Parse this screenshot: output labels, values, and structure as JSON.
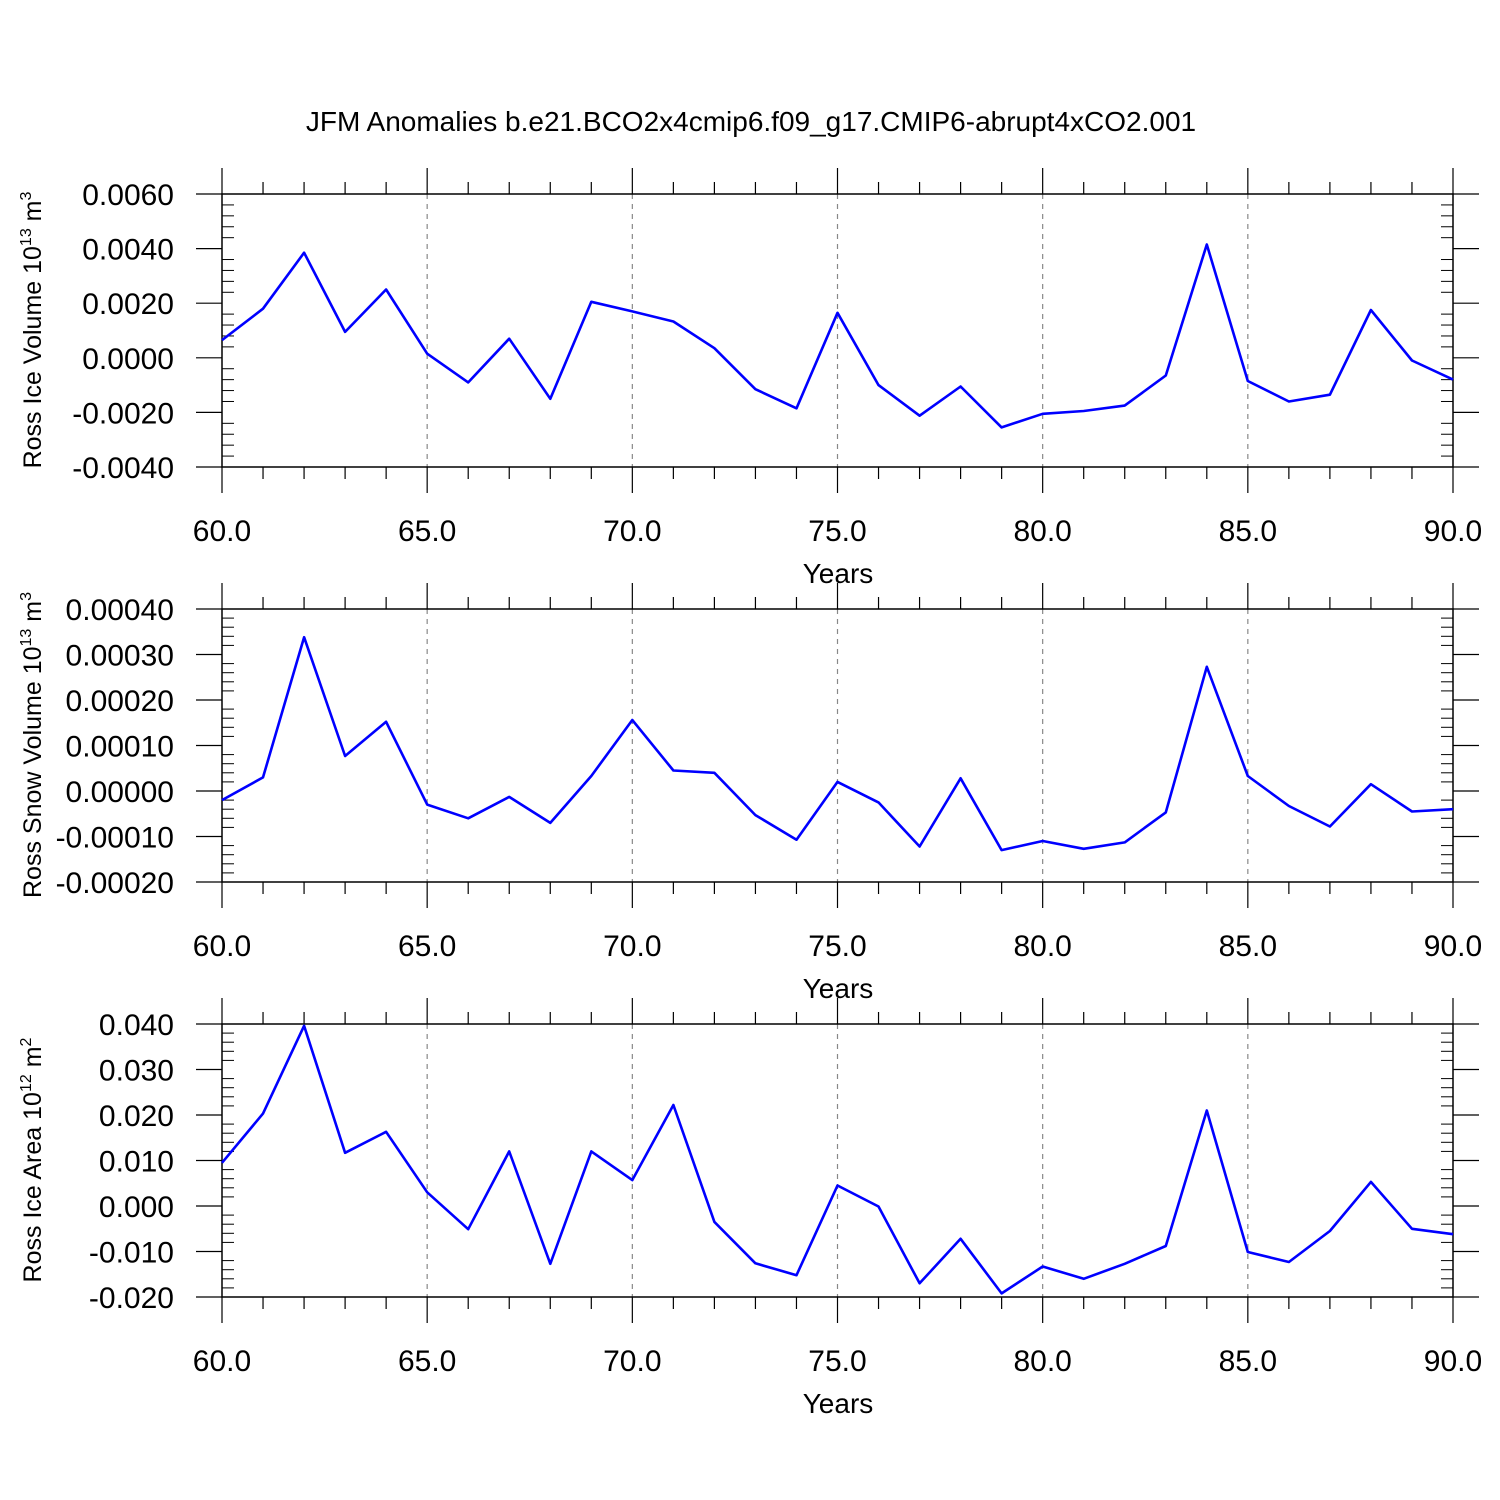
{
  "title": "JFM Anomalies b.e21.BCO2x4cmip6.f09_g17.CMIP6-abrupt4xCO2.001",
  "line_color": "#0000ff",
  "chart_data": [
    {
      "type": "line",
      "title": "JFM Anomalies b.e21.BCO2x4cmip6.f09_g17.CMIP6-abrupt4xCO2.001",
      "xlabel": "Years",
      "ylabel_main": "Ross Ice Volume 10",
      "ylabel_sup": "13",
      "ylabel_unit": "m",
      "ylabel_unit_sup": "3",
      "xlim": [
        60,
        90
      ],
      "ylim": [
        -0.004,
        0.006
      ],
      "xticks": [
        "60.0",
        "65.0",
        "70.0",
        "75.0",
        "80.0",
        "85.0",
        "90.0"
      ],
      "yticks": [
        "0.0060",
        "0.0040",
        "0.0020",
        "0.0000",
        "-0.0020",
        "-0.0040"
      ],
      "x": [
        60,
        61,
        62,
        63,
        64,
        65,
        66,
        67,
        68,
        69,
        70,
        71,
        72,
        73,
        74,
        75,
        76,
        77,
        78,
        79,
        80,
        81,
        82,
        83,
        84,
        85,
        86,
        87,
        88,
        89,
        90
      ],
      "values": [
        0.00065,
        0.0018,
        0.00385,
        0.00095,
        0.0025,
        0.00015,
        -0.0009,
        0.0007,
        -0.0015,
        0.00205,
        0.0017,
        0.00133,
        0.00035,
        -0.00115,
        -0.00185,
        0.00165,
        -0.001,
        -0.00212,
        -0.00105,
        -0.00255,
        -0.00205,
        -0.00195,
        -0.00175,
        -0.00065,
        0.00415,
        -0.00085,
        -0.0016,
        -0.00135,
        0.00175,
        -0.0001,
        -0.0008
      ]
    },
    {
      "type": "line",
      "xlabel": "Years",
      "ylabel_main": "Ross Snow Volume 10",
      "ylabel_sup": "13",
      "ylabel_unit": "m",
      "ylabel_unit_sup": "3",
      "xlim": [
        60,
        90
      ],
      "ylim": [
        -0.0002,
        0.0004
      ],
      "xticks": [
        "60.0",
        "65.0",
        "70.0",
        "75.0",
        "80.0",
        "85.0",
        "90.0"
      ],
      "yticks": [
        "0.00040",
        "0.00030",
        "0.00020",
        "0.00010",
        "0.00000",
        "-0.00010",
        "-0.00020"
      ],
      "x": [
        60,
        61,
        62,
        63,
        64,
        65,
        66,
        67,
        68,
        69,
        70,
        71,
        72,
        73,
        74,
        75,
        76,
        77,
        78,
        79,
        80,
        81,
        82,
        83,
        84,
        85,
        86,
        87,
        88,
        89,
        90
      ],
      "values": [
        -2e-05,
        3e-05,
        0.000338,
        7.7e-05,
        0.000152,
        -3e-05,
        -6e-05,
        -1.3e-05,
        -7e-05,
        3.3e-05,
        0.000156,
        4.5e-05,
        4e-05,
        -5.3e-05,
        -0.000107,
        2e-05,
        -2.5e-05,
        -0.000122,
        2.8e-05,
        -0.00013,
        -0.00011,
        -0.000127,
        -0.000113,
        -4.7e-05,
        0.000273,
        3.3e-05,
        -3.3e-05,
        -7.8e-05,
        1.5e-05,
        -4.5e-05,
        -4e-05
      ]
    },
    {
      "type": "line",
      "xlabel": "Years",
      "ylabel_main": "Ross Ice Area 10",
      "ylabel_sup": "12",
      "ylabel_unit": "m",
      "ylabel_unit_sup": "2",
      "xlim": [
        60,
        90
      ],
      "ylim": [
        -0.02,
        0.04
      ],
      "xticks": [
        "60.0",
        "65.0",
        "70.0",
        "75.0",
        "80.0",
        "85.0",
        "90.0"
      ],
      "yticks": [
        "0.040",
        "0.030",
        "0.020",
        "0.010",
        "0.000",
        "-0.010",
        "-0.020"
      ],
      "x": [
        60,
        61,
        62,
        63,
        64,
        65,
        66,
        67,
        68,
        69,
        70,
        71,
        72,
        73,
        74,
        75,
        76,
        77,
        78,
        79,
        80,
        81,
        82,
        83,
        84,
        85,
        86,
        87,
        88,
        89,
        90
      ],
      "values": [
        0.0095,
        0.0203,
        0.0396,
        0.0117,
        0.0163,
        0.003,
        -0.0051,
        0.012,
        -0.0127,
        0.012,
        0.0057,
        0.0222,
        -0.0035,
        -0.0126,
        -0.0152,
        0.0045,
        -0.0001,
        -0.017,
        -0.0072,
        -0.0192,
        -0.0133,
        -0.016,
        -0.0127,
        -0.0088,
        0.021,
        -0.0101,
        -0.0123,
        -0.0055,
        0.0053,
        -0.005,
        -0.0062
      ]
    }
  ]
}
